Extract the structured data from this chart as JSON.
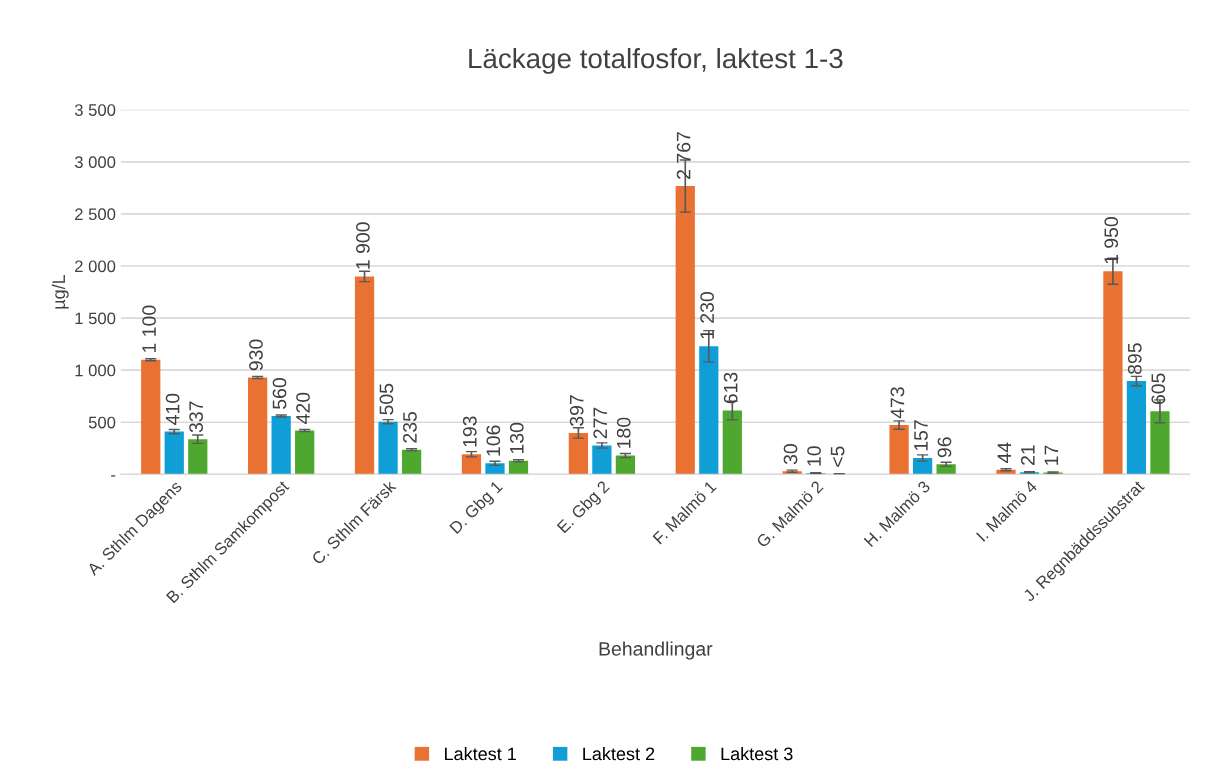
{
  "chart_data": {
    "type": "bar",
    "title": "Läckage totalfosfor, laktest 1-3",
    "xlabel": "Behandlingar",
    "ylabel": "µg/L",
    "categories": [
      "A. Sthlm Dagens",
      "B. Sthlm Samkompost",
      "C. Sthlm Färsk",
      "D. Gbg 1",
      "E. Gbg 2",
      "F. Malmö 1",
      "G. Malmö 2",
      "H. Malmö 3",
      "I. Malmö 4",
      "J. Regnbäddssubstrat"
    ],
    "series": [
      {
        "name": "Laktest 1",
        "color": "#e97132",
        "values": [
          1100,
          930,
          1900,
          193,
          397,
          2767,
          30,
          473,
          44,
          1950
        ],
        "errors": [
          10,
          10,
          50,
          25,
          50,
          250,
          10,
          40,
          10,
          125
        ],
        "value_labels": [
          "1 100",
          "930",
          "1 900",
          "193",
          "397",
          "2 767",
          "30",
          "473",
          "44",
          "1 950"
        ]
      },
      {
        "name": "Laktest 2",
        "color": "#0f9ed5",
        "values": [
          410,
          560,
          505,
          106,
          277,
          1230,
          10,
          157,
          21,
          895
        ],
        "errors": [
          20,
          10,
          20,
          20,
          25,
          150,
          5,
          30,
          5,
          45
        ],
        "value_labels": [
          "410",
          "560",
          "505",
          "106",
          "277",
          "1 230",
          "10",
          "157",
          "21",
          "895"
        ]
      },
      {
        "name": "Laktest 3",
        "color": "#4ea72e",
        "values": [
          337,
          420,
          235,
          130,
          180,
          613,
          3,
          96,
          17,
          605
        ],
        "errors": [
          40,
          10,
          10,
          10,
          20,
          90,
          3,
          20,
          5,
          110
        ],
        "value_labels": [
          "337",
          "420",
          "235",
          "130",
          "180",
          "613",
          "<5",
          "96",
          "17",
          "605"
        ]
      }
    ],
    "ylim": [
      0,
      3500
    ],
    "yticks": [
      {
        "value": 0,
        "label": "-"
      },
      {
        "value": 500,
        "label": "500"
      },
      {
        "value": 1000,
        "label": "1 000"
      },
      {
        "value": 1500,
        "label": "1 500"
      },
      {
        "value": 2000,
        "label": "2 000"
      },
      {
        "value": 2500,
        "label": "2 500"
      },
      {
        "value": 3000,
        "label": "3 000"
      },
      {
        "value": 3500,
        "label": "3 500"
      }
    ],
    "grid": "y",
    "legend": "bottom"
  }
}
